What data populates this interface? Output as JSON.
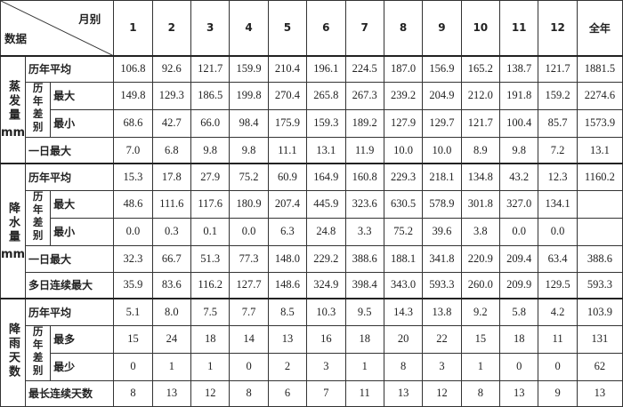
{
  "header": {
    "corner_top": "月别",
    "corner_bottom": "数据",
    "columns": [
      "1",
      "2",
      "3",
      "4",
      "5",
      "6",
      "7",
      "8",
      "9",
      "10",
      "11",
      "12",
      "全年"
    ]
  },
  "groups": [
    {
      "label": "蒸发量",
      "unit": "mm",
      "rows": [
        {
          "label": "历年平均",
          "values": [
            "106.8",
            "92.6",
            "121.7",
            "159.9",
            "210.4",
            "196.1",
            "224.5",
            "187.0",
            "156.9",
            "165.2",
            "138.7",
            "121.7",
            "1881.5"
          ]
        },
        {
          "label": "历年差别",
          "rows": [
            {
              "label": "最大",
              "values": [
                "149.8",
                "129.3",
                "186.5",
                "199.8",
                "270.4",
                "265.8",
                "267.3",
                "239.2",
                "204.9",
                "212.0",
                "191.8",
                "159.2",
                "2274.6"
              ]
            },
            {
              "label": "最小",
              "values": [
                "68.6",
                "42.7",
                "66.0",
                "98.4",
                "175.9",
                "159.3",
                "189.2",
                "127.9",
                "129.7",
                "121.7",
                "100.4",
                "85.7",
                "1573.9"
              ]
            }
          ]
        },
        {
          "label": "一日最大",
          "values": [
            "7.0",
            "6.8",
            "9.8",
            "9.8",
            "11.1",
            "13.1",
            "11.9",
            "10.0",
            "10.0",
            "8.9",
            "9.8",
            "7.2",
            "13.1"
          ]
        }
      ]
    },
    {
      "label": "降水量",
      "unit": "mm",
      "rows": [
        {
          "label": "历年平均",
          "values": [
            "15.3",
            "17.8",
            "27.9",
            "75.2",
            "60.9",
            "164.9",
            "160.8",
            "229.3",
            "218.1",
            "134.8",
            "43.2",
            "12.3",
            "1160.2"
          ]
        },
        {
          "label": "历年差别",
          "rows": [
            {
              "label": "最大",
              "values": [
                "48.6",
                "111.6",
                "117.6",
                "180.9",
                "207.4",
                "445.9",
                "323.6",
                "630.5",
                "578.9",
                "301.8",
                "327.0",
                "134.1",
                null
              ]
            },
            {
              "label": "最小",
              "values": [
                "0.0",
                "0.3",
                "0.1",
                "0.0",
                "6.3",
                "24.8",
                "3.3",
                "75.2",
                "39.6",
                "3.8",
                "0.0",
                "0.0",
                null
              ]
            }
          ]
        },
        {
          "label": "一日最大",
          "values": [
            "32.3",
            "66.7",
            "51.3",
            "77.3",
            "148.0",
            "229.2",
            "388.6",
            "188.1",
            "341.8",
            "220.9",
            "209.4",
            "63.4",
            "388.6"
          ]
        },
        {
          "label": "多日连续最大",
          "values": [
            "35.9",
            "83.6",
            "116.2",
            "127.7",
            "148.6",
            "324.9",
            "398.4",
            "343.0",
            "593.3",
            "260.0",
            "209.9",
            "129.5",
            "593.3"
          ]
        }
      ]
    },
    {
      "label": "降雨天数",
      "unit": null,
      "rows": [
        {
          "label": "历年平均",
          "values": [
            "5.1",
            "8.0",
            "7.5",
            "7.7",
            "8.5",
            "10.3",
            "9.5",
            "14.3",
            "13.8",
            "9.2",
            "5.8",
            "4.2",
            "103.9"
          ]
        },
        {
          "label": "历年差别",
          "rows": [
            {
              "label": "最多",
              "values": [
                "15",
                "24",
                "18",
                "14",
                "13",
                "16",
                "18",
                "20",
                "22",
                "15",
                "18",
                "11",
                "131"
              ]
            },
            {
              "label": "最少",
              "values": [
                "0",
                "1",
                "1",
                "0",
                "2",
                "3",
                "1",
                "8",
                "3",
                "1",
                "0",
                "0",
                "62"
              ]
            }
          ]
        },
        {
          "label": "最长连续天数",
          "values": [
            "8",
            "13",
            "12",
            "8",
            "6",
            "7",
            "11",
            "13",
            "12",
            "8",
            "13",
            "9",
            "13"
          ]
        }
      ]
    }
  ]
}
